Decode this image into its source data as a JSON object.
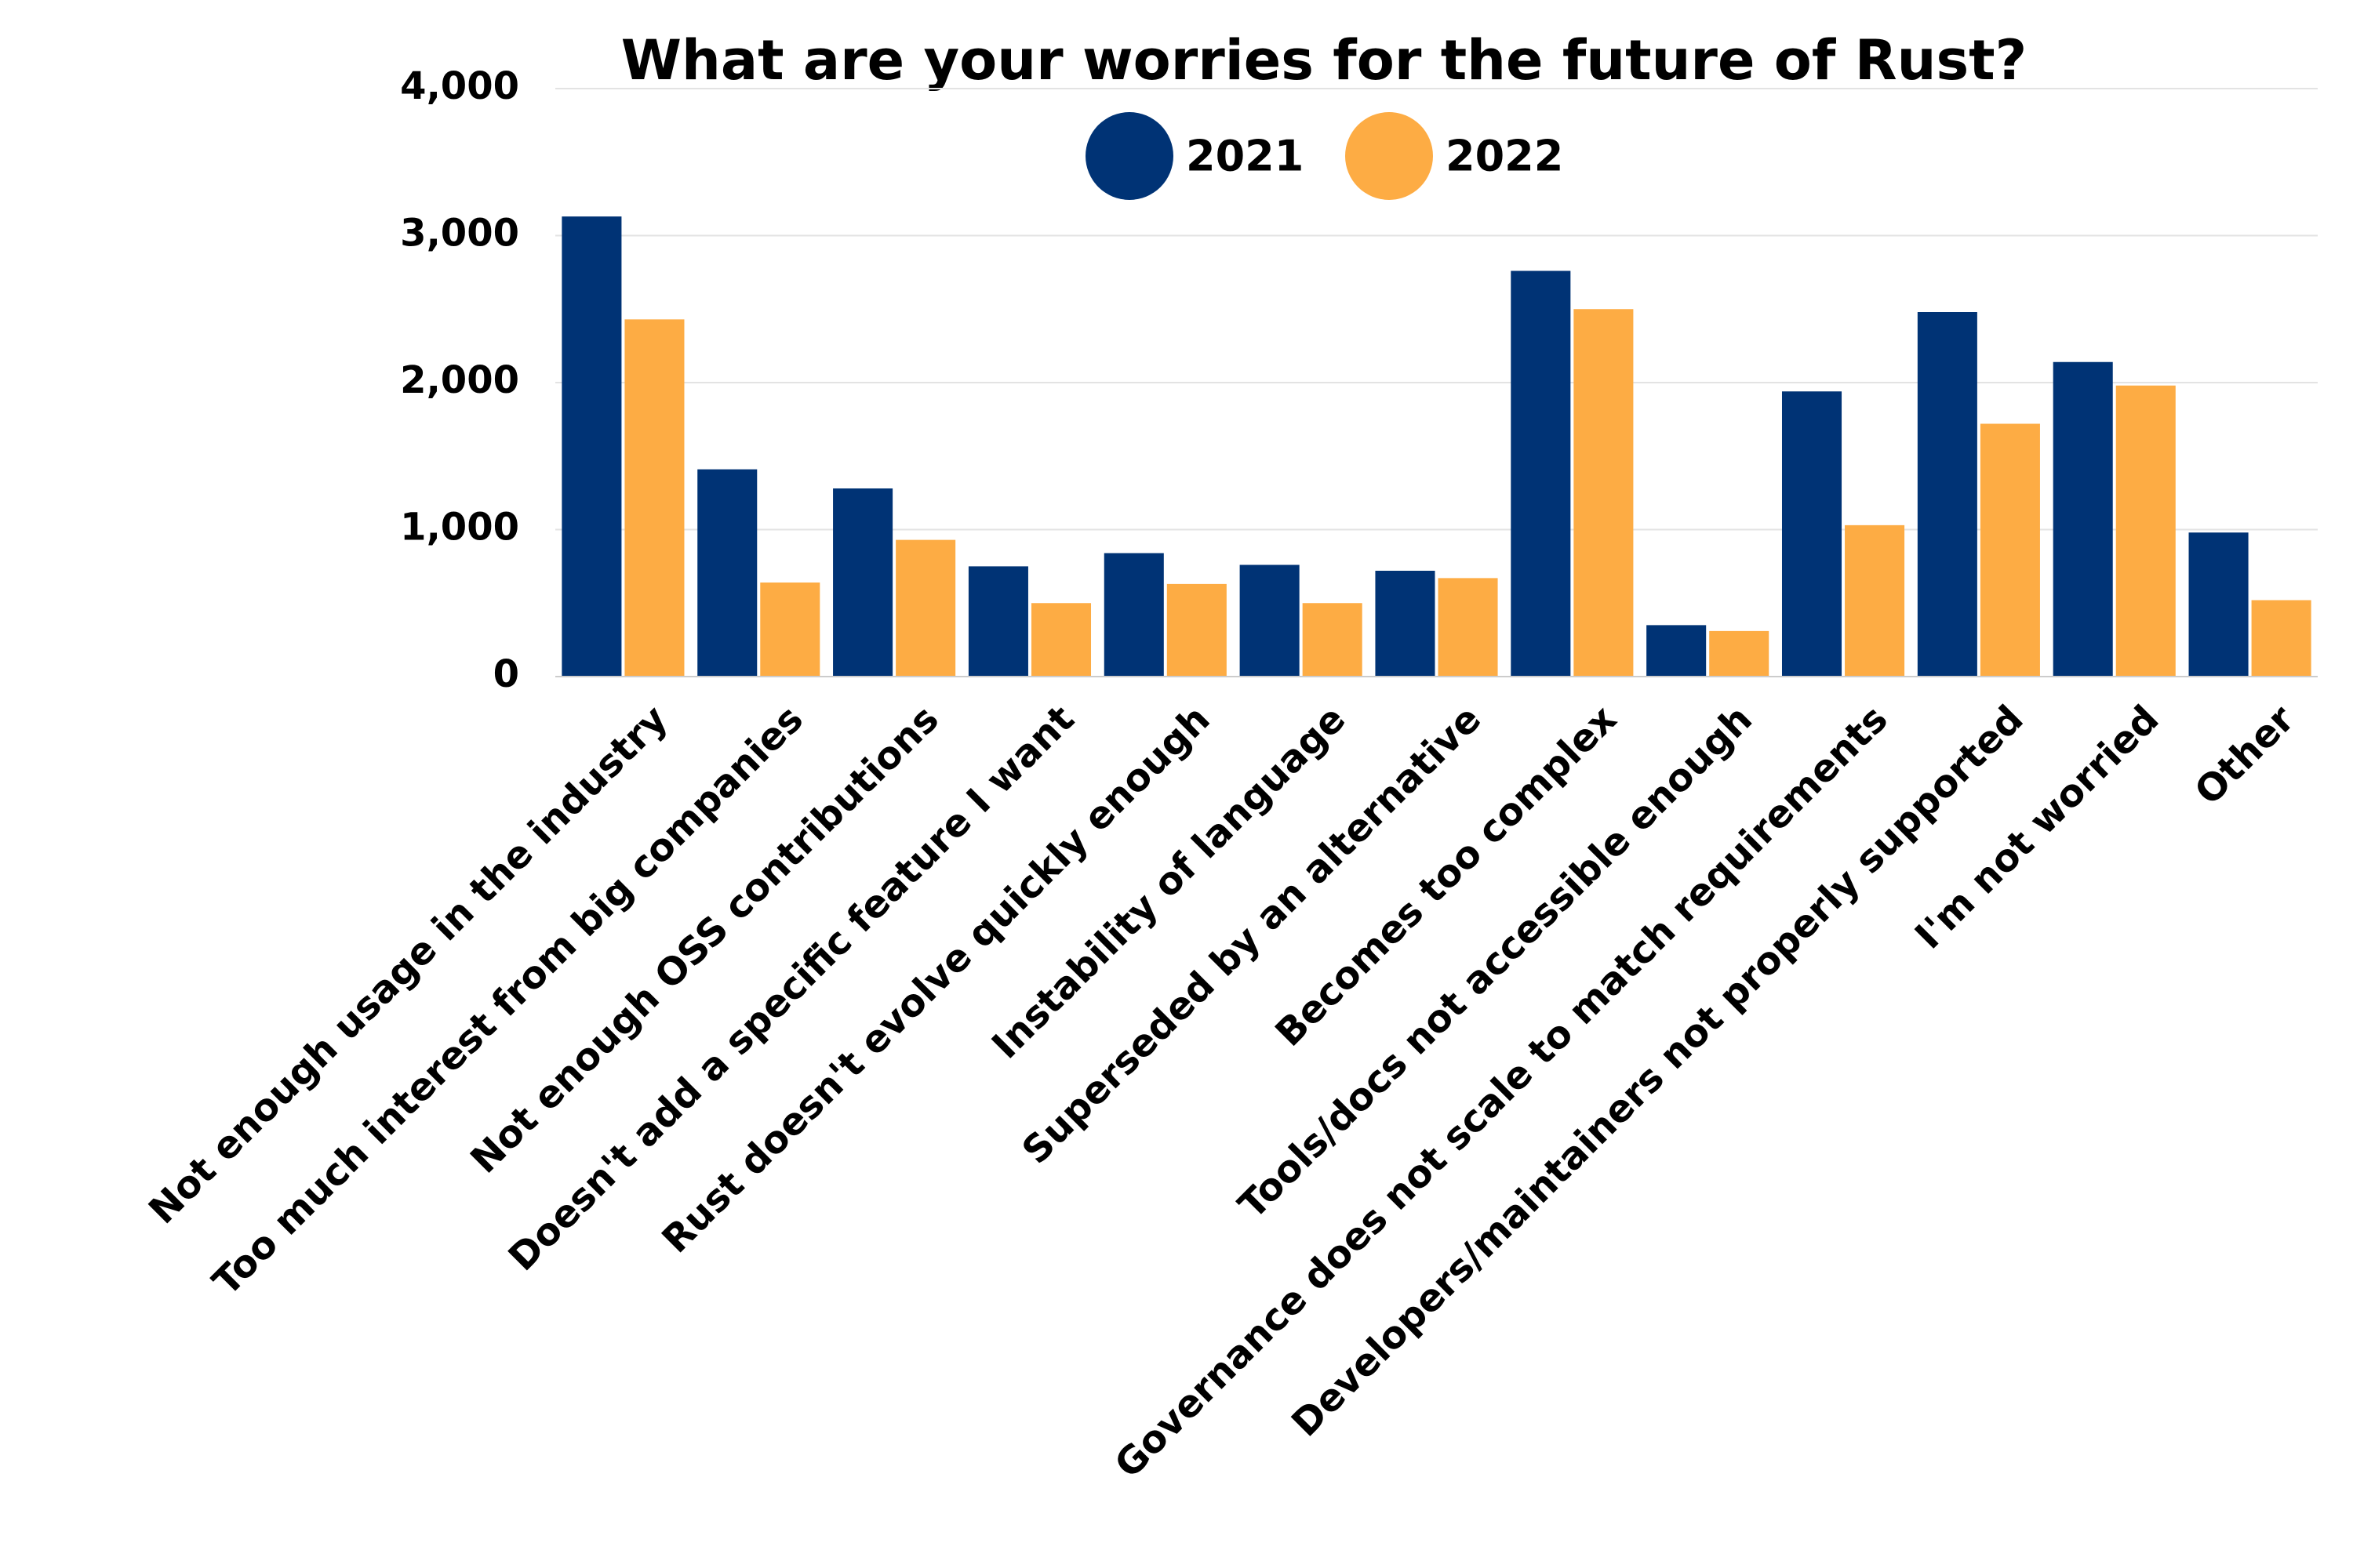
{
  "chart_data": {
    "type": "bar",
    "title": "What are your worries for the future of Rust?",
    "categories": [
      "Not enough usage in the industry",
      "Too much interest from big companies",
      "Not enough OSS contributions",
      "Doesn't add a specific feature I want",
      "Rust doesn't evolve quickly enough",
      "Instability of language",
      "Superseded by an alternative",
      "Becomes too complex",
      "Tools/docs not accessible enough",
      "Governance does not scale to match requirements",
      "Developers/maintainers not properly supported",
      "I'm not worried",
      "Other"
    ],
    "series": [
      {
        "name": "2021",
        "color": "#003375",
        "values": [
          3130,
          1410,
          1280,
          750,
          840,
          760,
          720,
          2760,
          350,
          1940,
          2480,
          2140,
          980
        ]
      },
      {
        "name": "2022",
        "color": "#fdac44",
        "values": [
          2430,
          640,
          930,
          500,
          630,
          500,
          670,
          2500,
          310,
          1030,
          1720,
          1980,
          520
        ]
      }
    ],
    "ylim": [
      0,
      4000
    ],
    "yticks": [
      0,
      {
        "value": 1000,
        "label": "1,000"
      },
      {
        "value": 2000,
        "label": "2,000"
      },
      {
        "value": 3000,
        "label": "3,000"
      },
      {
        "value": 4000,
        "label": "4,000"
      }
    ],
    "grid": true,
    "legend": "top"
  }
}
